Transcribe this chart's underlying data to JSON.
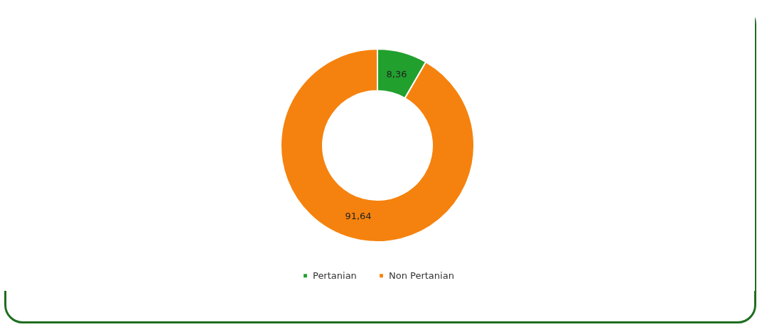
{
  "chart_data": {
    "type": "donut",
    "categories": [
      "Pertanian",
      "Non Pertanian"
    ],
    "values": [
      8.36,
      91.64
    ],
    "colors": [
      "#21a02e",
      "#f5820e"
    ],
    "value_labels": [
      "8,36",
      "91,64"
    ],
    "legend": "bottom"
  }
}
